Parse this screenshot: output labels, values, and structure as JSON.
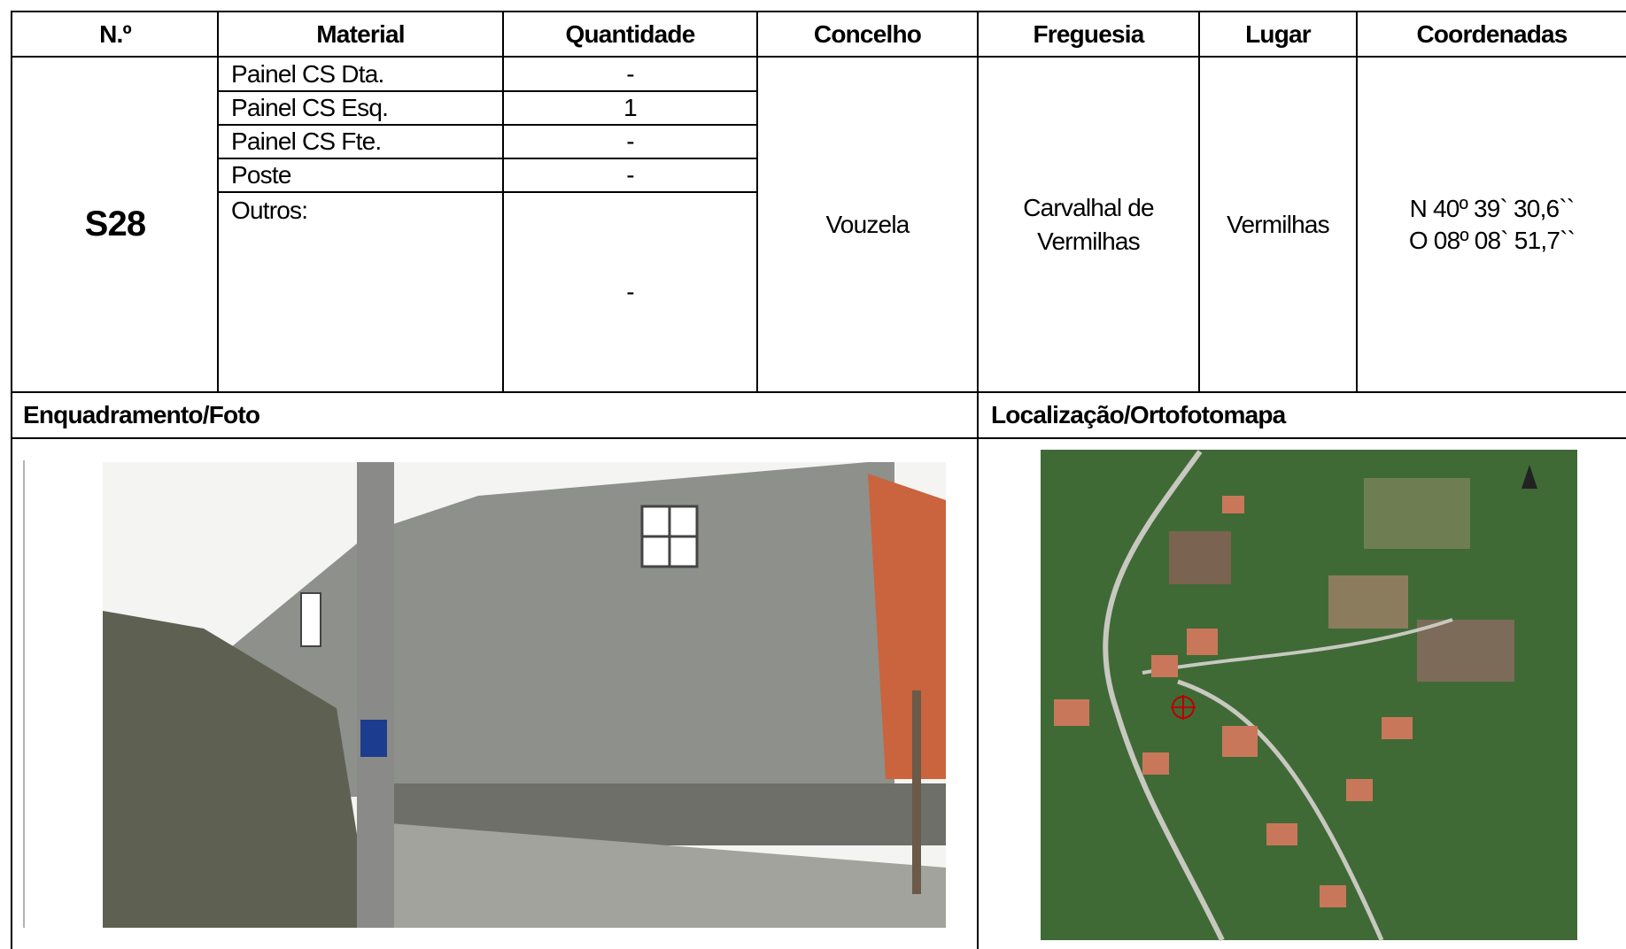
{
  "table": {
    "headers": [
      "N.º",
      "Material",
      "Quantidade",
      "Concelho",
      "Freguesia",
      "Lugar",
      "Coordenadas"
    ],
    "row": {
      "number": "S28",
      "materials": [
        {
          "material": "Painel CS Dta.",
          "quantity": "-"
        },
        {
          "material": "Painel CS Esq.",
          "quantity": 1
        },
        {
          "material": "Painel CS Fte.",
          "quantity": "-"
        },
        {
          "material": "Poste",
          "quantity": "-"
        },
        {
          "material": "Outros:",
          "quantity": "-"
        }
      ],
      "concelho": "Vouzela",
      "freguesia": "Carvalhal de Vermilhas",
      "lugar": "Vermilhas",
      "coordinates": [
        "N 40º 39` 30,6``",
        "O 08º 08` 51,7``"
      ]
    }
  },
  "sections": [
    "Enquadramento/Foto",
    "Localização/Ortofotomapa"
  ]
}
